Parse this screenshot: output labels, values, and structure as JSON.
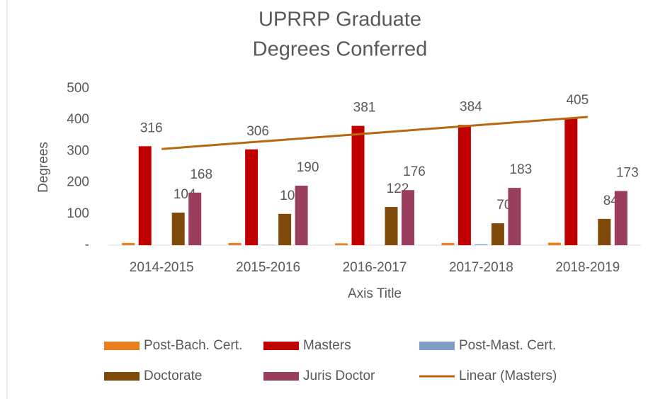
{
  "chart_data": {
    "type": "bar",
    "title": [
      "UPRRP Graduate",
      "Degrees Conferred"
    ],
    "y_label": "Degrees",
    "x_label": "Axis Title",
    "categories": [
      "2014-2015",
      "2015-2016",
      "2016-2017",
      "2017-2018",
      "2018-2019"
    ],
    "series": [
      {
        "name": "Post-Bach. Cert.",
        "color": "#e97f1f",
        "values": [
          7,
          7,
          6,
          7,
          8
        ]
      },
      {
        "name": "Masters",
        "color": "#c00000",
        "values": [
          316,
          306,
          381,
          384,
          405
        ],
        "data_labels": true
      },
      {
        "name": "Post-Mast. Cert.",
        "color": "#7f9fc6",
        "values": [
          0,
          1,
          0,
          3,
          0
        ]
      },
      {
        "name": "Doctorate",
        "color": "#7f4a0a",
        "values": [
          104,
          100,
          122,
          70,
          84
        ],
        "data_labels": true
      },
      {
        "name": "Juris Doctor",
        "color": "#9b3e5d",
        "values": [
          168,
          190,
          176,
          183,
          173
        ],
        "data_labels": true
      },
      {
        "name": "Linear (Masters)",
        "color": "#b8690f",
        "type": "line",
        "values": [
          307.2,
          332.8,
          358.4,
          384,
          409.6
        ]
      }
    ],
    "ylim": [
      0,
      500
    ],
    "yticks": [
      {
        "value": 0,
        "label": "-"
      },
      100,
      200,
      300,
      400,
      500
    ],
    "legend": "bottom"
  }
}
